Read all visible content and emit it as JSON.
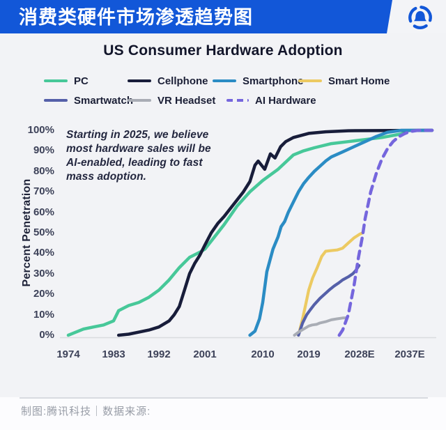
{
  "header": {
    "title": "消费类硬件市场渗透趋势图",
    "logo": "tencent-tech-logo",
    "bar_color": "#1257d8"
  },
  "chart_data": {
    "type": "line",
    "title": "US Consumer Hardware Adoption",
    "ylabel": "Percent Penetration",
    "xlabel": "",
    "grid": false,
    "legend_position": "top",
    "xlim": [
      1974,
      2041
    ],
    "ylim": [
      0,
      100
    ],
    "x_ticks": [
      "1974",
      "1983",
      "1992",
      "2001",
      "2010",
      "2019",
      "2028E",
      "2037E"
    ],
    "y_ticks": [
      "0%",
      "10%",
      "20%",
      "30%",
      "40%",
      "50%",
      "60%",
      "70%",
      "80%",
      "90%",
      "100%"
    ],
    "annotation": "Starting in 2025, we believe\nmost hardware sales will be\nAI-enabled, leading to fast\nmass adoption.",
    "series": [
      {
        "name": "PC",
        "color": "#47c899",
        "style": "solid",
        "width": 4.5,
        "points": [
          [
            1974,
            0
          ],
          [
            1975,
            1
          ],
          [
            1977,
            3
          ],
          [
            1979,
            4
          ],
          [
            1981,
            5
          ],
          [
            1983,
            7
          ],
          [
            1984,
            12
          ],
          [
            1986,
            14.5
          ],
          [
            1988,
            16
          ],
          [
            1990,
            18.5
          ],
          [
            1992,
            22
          ],
          [
            1994,
            27
          ],
          [
            1996,
            33
          ],
          [
            1998,
            38
          ],
          [
            2000,
            40.5
          ],
          [
            2001,
            42
          ],
          [
            2002,
            46
          ],
          [
            2004,
            54
          ],
          [
            2006,
            63
          ],
          [
            2008,
            70
          ],
          [
            2010,
            75.5
          ],
          [
            2013,
            81
          ],
          [
            2016,
            88
          ],
          [
            2018,
            90
          ],
          [
            2020,
            91.5
          ],
          [
            2023,
            93.5
          ],
          [
            2026,
            94.5
          ],
          [
            2029,
            95.5
          ],
          [
            2032,
            96.5
          ],
          [
            2036,
            98.5
          ]
        ]
      },
      {
        "name": "Cellphone",
        "color": "#181d3a",
        "style": "solid",
        "width": 4.5,
        "points": [
          [
            1984,
            0
          ],
          [
            1986,
            0.5
          ],
          [
            1988,
            1.5
          ],
          [
            1990,
            2.5
          ],
          [
            1992,
            4
          ],
          [
            1994,
            7
          ],
          [
            1995,
            10
          ],
          [
            1996,
            14
          ],
          [
            1997,
            22
          ],
          [
            1998,
            30
          ],
          [
            1999,
            35
          ],
          [
            2000,
            39
          ],
          [
            2001,
            44
          ],
          [
            2002,
            50
          ],
          [
            2003,
            54.5
          ],
          [
            2004,
            58
          ],
          [
            2005,
            62
          ],
          [
            2006,
            66
          ],
          [
            2007,
            70
          ],
          [
            2008,
            75
          ],
          [
            2008.8,
            83
          ],
          [
            2009.3,
            85
          ],
          [
            2010.4,
            81
          ],
          [
            2011.5,
            88.5
          ],
          [
            2012.4,
            86.5
          ],
          [
            2013.5,
            92
          ],
          [
            2014.5,
            94.5
          ],
          [
            2016,
            96.5
          ],
          [
            2019,
            98.5
          ],
          [
            2022,
            99.3
          ],
          [
            2026,
            99.8
          ],
          [
            2041,
            100
          ]
        ]
      },
      {
        "name": "Smartphone",
        "color": "#2b8cc4",
        "style": "solid",
        "width": 4.5,
        "points": [
          [
            2008,
            0
          ],
          [
            2008.8,
            2
          ],
          [
            2009.5,
            8
          ],
          [
            2010,
            16
          ],
          [
            2010.8,
            31
          ],
          [
            2012,
            42
          ],
          [
            2013,
            48
          ],
          [
            2013.6,
            53
          ],
          [
            2014.3,
            55.5
          ],
          [
            2015,
            60
          ],
          [
            2016,
            65
          ],
          [
            2017,
            70
          ],
          [
            2018,
            74
          ],
          [
            2019,
            77
          ],
          [
            2020,
            80
          ],
          [
            2021,
            82.5
          ],
          [
            2022,
            85
          ],
          [
            2023,
            87
          ],
          [
            2025,
            89.5
          ],
          [
            2027,
            92
          ],
          [
            2029,
            94.5
          ],
          [
            2031,
            97
          ],
          [
            2033,
            99
          ],
          [
            2035.5,
            100
          ],
          [
            2041,
            100
          ]
        ]
      },
      {
        "name": "Smart Home",
        "color": "#ecca62",
        "style": "solid",
        "width": 4.2,
        "points": [
          [
            2017,
            0
          ],
          [
            2017.8,
            8
          ],
          [
            2018.5,
            16
          ],
          [
            2019,
            22
          ],
          [
            2019.7,
            28
          ],
          [
            2020.5,
            33
          ],
          [
            2021.3,
            38.5
          ],
          [
            2022,
            41
          ],
          [
            2023,
            41.3
          ],
          [
            2024,
            41.6
          ],
          [
            2025,
            42.5
          ],
          [
            2026,
            45
          ],
          [
            2027,
            47.5
          ],
          [
            2028,
            49.3
          ],
          [
            2028.6,
            50
          ]
        ]
      },
      {
        "name": "Smartwatch",
        "color": "#5560a9",
        "style": "solid",
        "width": 4.2,
        "points": [
          [
            2017,
            0
          ],
          [
            2017.8,
            6
          ],
          [
            2018.6,
            10
          ],
          [
            2019.3,
            12.5
          ],
          [
            2020,
            15
          ],
          [
            2021,
            18
          ],
          [
            2021.8,
            20
          ],
          [
            2022.6,
            22
          ],
          [
            2023.5,
            24
          ],
          [
            2024.3,
            25.5
          ],
          [
            2025,
            27
          ],
          [
            2026,
            28.5
          ],
          [
            2026.8,
            30
          ],
          [
            2027.3,
            31.5
          ],
          [
            2027.9,
            34
          ]
        ]
      },
      {
        "name": "VR Headset",
        "color": "#a9adb5",
        "style": "solid",
        "width": 4,
        "points": [
          [
            2016.2,
            0
          ],
          [
            2017,
            1.5
          ],
          [
            2018,
            3
          ],
          [
            2019,
            4.5
          ],
          [
            2019.6,
            5
          ],
          [
            2020.4,
            5.3
          ],
          [
            2021,
            6
          ],
          [
            2022,
            6.6
          ],
          [
            2023,
            7.5
          ],
          [
            2024,
            8
          ],
          [
            2025,
            8.4
          ],
          [
            2025.8,
            8.5
          ]
        ]
      },
      {
        "name": "AI Hardware",
        "color": "#7566dd",
        "style": "dashed",
        "width": 4.5,
        "points": [
          [
            2024.4,
            0
          ],
          [
            2025,
            2.5
          ],
          [
            2026,
            10
          ],
          [
            2027,
            24
          ],
          [
            2027.8,
            38
          ],
          [
            2028.5,
            48
          ],
          [
            2029,
            57
          ],
          [
            2030,
            70
          ],
          [
            2031,
            79
          ],
          [
            2032,
            86
          ],
          [
            2033,
            91
          ],
          [
            2034,
            94.5
          ],
          [
            2035,
            96.8
          ],
          [
            2036,
            98.3
          ],
          [
            2037,
            99.4
          ],
          [
            2038.5,
            100
          ],
          [
            2041,
            100
          ]
        ]
      }
    ]
  },
  "footer": {
    "text": "制图:腾讯科技｜数据来源:"
  }
}
